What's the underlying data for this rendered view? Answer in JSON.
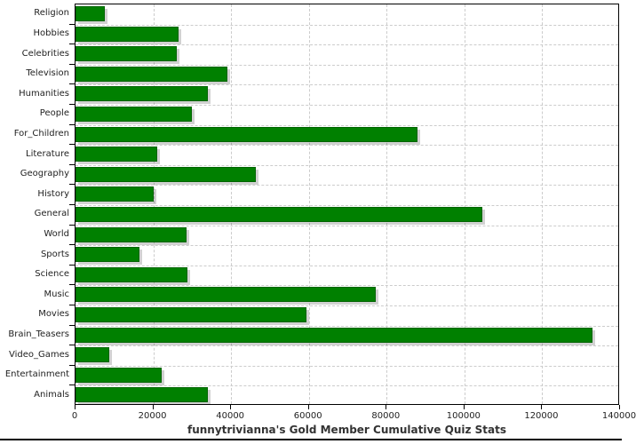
{
  "chart_data": {
    "type": "bar",
    "orientation": "horizontal",
    "title": "funnytrivianna's Gold Member Cumulative Quiz Stats",
    "categories": [
      "Religion",
      "Hobbies",
      "Celebrities",
      "Television",
      "Humanities",
      "People",
      "For_Children",
      "Literature",
      "Geography",
      "History",
      "General",
      "World",
      "Sports",
      "Science",
      "Music",
      "Movies",
      "Brain_Teasers",
      "Video_Games",
      "Entertainment",
      "Animals"
    ],
    "values": [
      7500,
      26500,
      26000,
      39000,
      34000,
      30000,
      88000,
      21000,
      46300,
      20200,
      104600,
      28600,
      16500,
      28800,
      77200,
      59300,
      133000,
      8700,
      22100,
      34000
    ],
    "xlabel": "",
    "ylabel": "",
    "xlim": [
      0,
      140000
    ],
    "xticks": [
      0,
      20000,
      40000,
      60000,
      80000,
      100000,
      120000,
      140000
    ],
    "xtick_labels": [
      "0",
      "20000",
      "40000",
      "60000",
      "80000",
      "100000",
      "120000",
      "140000"
    ],
    "grid": true,
    "legend_position": "none",
    "colors": {
      "bar_fill": "#008000",
      "bar_border": "#006400",
      "bar_shadow": "rgba(0,0,0,0.18)",
      "gridline": "#cccccc",
      "axis": "#000000",
      "tick_text": "#222222",
      "title_text": "#333333",
      "background": "#ffffff"
    }
  }
}
